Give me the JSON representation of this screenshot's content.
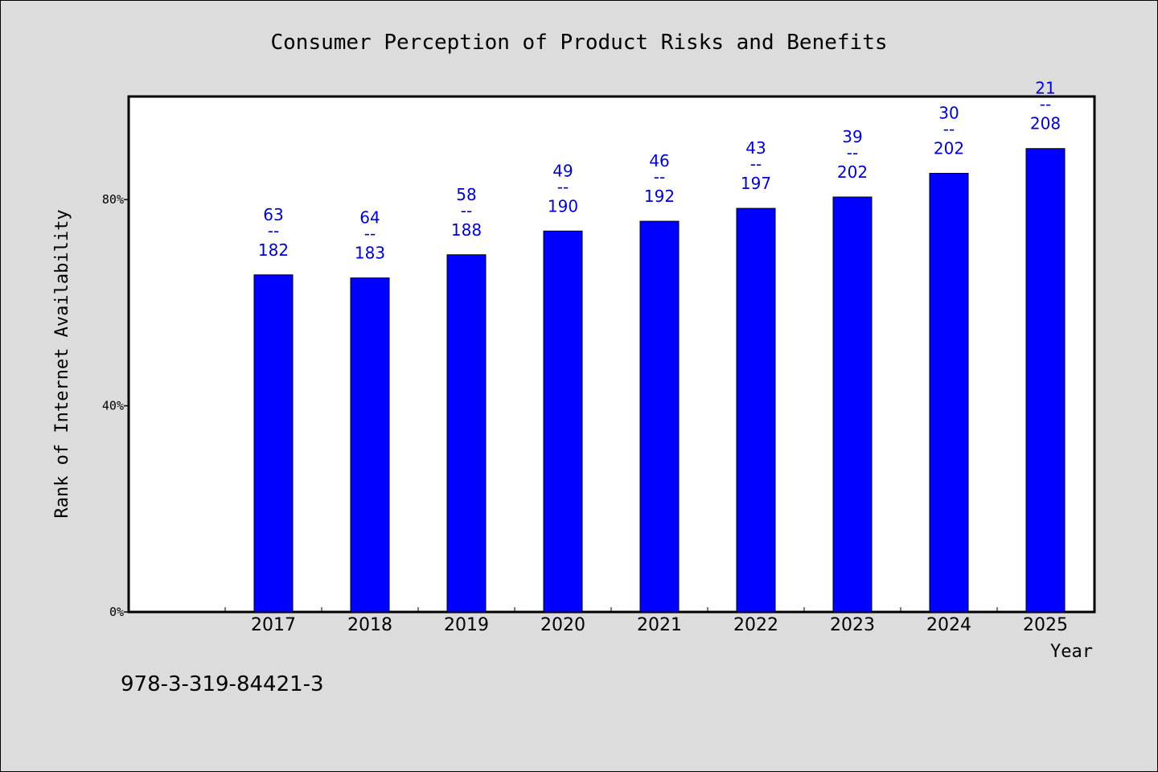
{
  "chart_data": {
    "type": "bar",
    "title": "Consumer Perception of Product Risks and Benefits",
    "xlabel": "Year",
    "ylabel": "Rank of Internet Availability",
    "categories": [
      "2017",
      "2018",
      "2019",
      "2020",
      "2021",
      "2022",
      "2023",
      "2024",
      "2025"
    ],
    "series": [
      {
        "values": [
          65.4,
          64.8,
          69.3,
          73.9,
          75.8,
          78.3,
          80.5,
          85.1,
          89.9
        ],
        "color": "#0000ff"
      }
    ],
    "data_labels": [
      {
        "top": "63",
        "sep": "--",
        "bottom": "182"
      },
      {
        "top": "64",
        "sep": "--",
        "bottom": "183"
      },
      {
        "top": "58",
        "sep": "--",
        "bottom": "188"
      },
      {
        "top": "49",
        "sep": "--",
        "bottom": "190"
      },
      {
        "top": "46",
        "sep": "--",
        "bottom": "192"
      },
      {
        "top": "43",
        "sep": "--",
        "bottom": "197"
      },
      {
        "top": "39",
        "sep": "--",
        "bottom": "202"
      },
      {
        "top": "30",
        "sep": "--",
        "bottom": "202"
      },
      {
        "top": "21",
        "sep": "--",
        "bottom": "208"
      }
    ],
    "yticks": [
      {
        "value": 0,
        "label": "0%"
      },
      {
        "value": 40,
        "label": "40%"
      },
      {
        "value": 80,
        "label": "80%"
      }
    ],
    "ylim": [
      0,
      100
    ],
    "grid": false,
    "legend": "none",
    "colors": {
      "bar": "#0000ff",
      "data_label": "#0000cc",
      "plot_background": "#ffffff",
      "page_background": "#dcdcdc"
    }
  },
  "footer": {
    "isbn": "978-3-319-84421-3"
  }
}
